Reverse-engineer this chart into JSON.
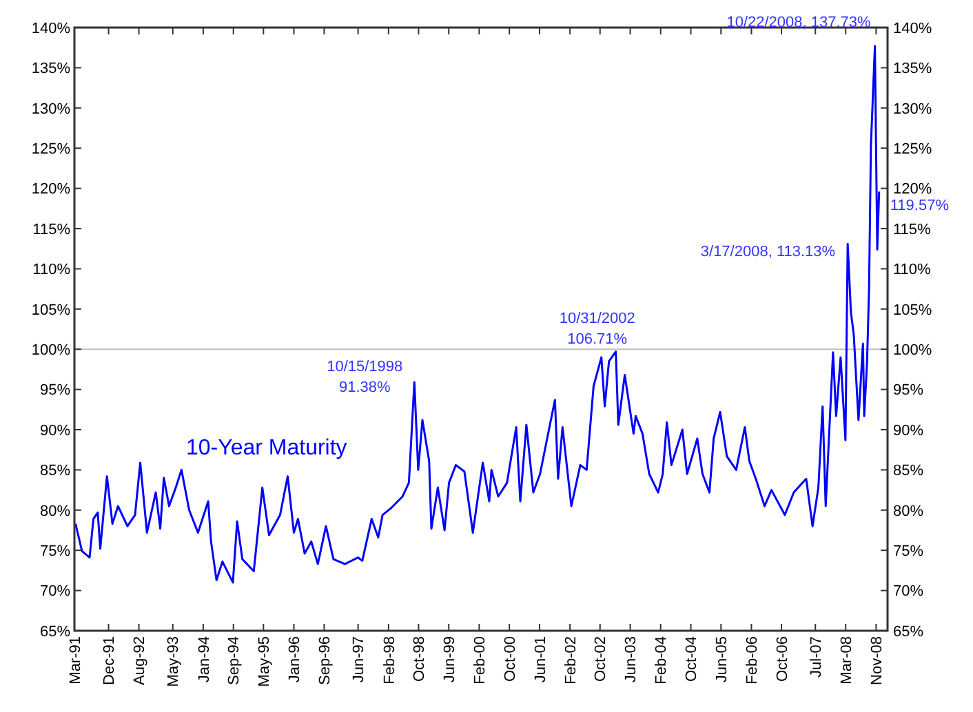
{
  "chart_data": {
    "type": "line",
    "series": [
      {
        "name": "10-Year Maturity",
        "color": "#0000ff",
        "x": [
          "1991-03-10",
          "1991-05-01",
          "1991-07-01",
          "1991-08-01",
          "1991-09-05",
          "1991-09-25",
          "1991-11-18",
          "1992-01-01",
          "1992-02-15",
          "1992-05-01",
          "1992-07-01",
          "1992-08-12",
          "1992-10-05",
          "1992-12-15",
          "1993-01-20",
          "1993-02-18",
          "1993-04-01",
          "1993-05-25",
          "1993-07-10",
          "1993-09-10",
          "1993-11-20",
          "1994-02-10",
          "1994-03-05",
          "1994-04-18",
          "1994-06-05",
          "1994-08-28",
          "1994-10-01",
          "1994-11-12",
          "1995-02-12",
          "1995-03-18",
          "1995-04-22",
          "1995-06-15",
          "1995-09-12",
          "1995-11-12",
          "1996-01-01",
          "1996-02-03",
          "1996-03-28",
          "1996-05-20",
          "1996-07-12",
          "1996-09-15",
          "1996-11-15",
          "1997-02-15",
          "1997-06-01",
          "1997-07-05",
          "1997-09-18",
          "1997-11-10",
          "1997-12-15",
          "1998-02-25",
          "1998-05-25",
          "1998-07-15",
          "1998-08-28",
          "1998-09-28",
          "1998-11-01",
          "1998-12-25",
          "1999-01-12",
          "1999-03-05",
          "1999-04-28",
          "1999-06-03",
          "1999-07-28",
          "1999-10-05",
          "1999-12-12",
          "2000-03-01",
          "2000-04-22",
          "2000-05-10",
          "2000-07-03",
          "2000-09-12",
          "2000-11-25",
          "2000-12-28",
          "2001-02-15",
          "2001-04-12",
          "2001-06-05",
          "2001-10-03",
          "2001-10-28",
          "2001-12-03",
          "2002-02-12",
          "2002-04-25",
          "2002-06-15",
          "2002-08-10",
          "2002-10-12",
          "2002-11-08",
          "2002-12-12",
          "2003-02-05",
          "2003-02-25",
          "2003-04-18",
          "2003-06-28",
          "2003-07-15",
          "2003-09-08",
          "2003-11-01",
          "2004-01-12",
          "2004-02-18",
          "2004-03-22",
          "2004-04-28",
          "2004-07-25",
          "2004-09-01",
          "2004-11-22",
          "2005-01-03",
          "2005-02-28",
          "2005-04-03",
          "2005-05-25",
          "2005-07-18",
          "2005-10-01",
          "2005-12-10",
          "2006-01-15",
          "2006-03-08",
          "2006-05-18",
          "2006-07-12",
          "2006-10-28",
          "2007-01-08",
          "2007-04-18",
          "2007-06-08",
          "2007-07-25",
          "2007-08-28",
          "2007-09-22",
          "2007-11-20",
          "2007-12-15",
          "2008-01-20",
          "2008-02-28",
          "2008-03-17",
          "2008-04-12",
          "2008-05-05",
          "2008-06-12",
          "2008-07-18",
          "2008-07-28",
          "2008-08-20",
          "2008-09-05",
          "2008-09-20",
          "2008-10-22",
          "2008-11-10",
          "2008-11-25"
        ],
        "values": [
          78.3,
          74.9,
          74.1,
          78.9,
          79.7,
          75.2,
          84.2,
          78.3,
          80.5,
          78.0,
          79.4,
          85.9,
          77.2,
          82.2,
          77.7,
          84.0,
          80.5,
          82.8,
          85.0,
          80.0,
          77.2,
          81.1,
          76.1,
          71.3,
          73.6,
          71.0,
          78.6,
          73.9,
          72.4,
          77.5,
          82.8,
          76.9,
          79.4,
          84.2,
          77.2,
          78.9,
          74.6,
          76.1,
          73.3,
          78.0,
          73.9,
          73.3,
          74.1,
          73.7,
          78.9,
          76.6,
          79.4,
          80.3,
          81.7,
          83.4,
          95.9,
          85.0,
          91.2,
          86.1,
          77.7,
          82.8,
          77.5,
          83.4,
          85.6,
          84.8,
          77.2,
          85.9,
          81.1,
          85.0,
          81.7,
          83.4,
          90.3,
          81.1,
          90.6,
          82.2,
          84.5,
          93.7,
          83.9,
          90.3,
          80.5,
          85.6,
          85.0,
          95.4,
          99.0,
          92.9,
          98.5,
          99.7,
          90.6,
          96.8,
          89.5,
          91.7,
          89.5,
          84.5,
          82.2,
          84.5,
          90.9,
          85.6,
          90.0,
          84.5,
          88.9,
          84.5,
          82.2,
          88.9,
          92.2,
          86.7,
          85.0,
          90.3,
          86.1,
          83.9,
          80.5,
          82.5,
          79.4,
          82.2,
          83.9,
          78.0,
          82.8,
          92.9,
          80.5,
          99.6,
          91.7,
          99.0,
          88.7,
          113.1,
          104.6,
          101.8,
          91.2,
          100.7,
          91.7,
          98.4,
          107.4,
          125.3,
          137.7,
          112.4,
          119.6
        ]
      }
    ],
    "xlim": [
      "1991-03-01",
      "2009-02-01"
    ],
    "xticks": [
      {
        "value": "1991-03-01",
        "label": "Mar-91"
      },
      {
        "value": "1991-12-01",
        "label": "Dec-91"
      },
      {
        "value": "1992-08-01",
        "label": "Aug-92"
      },
      {
        "value": "1993-05-01",
        "label": "May-93"
      },
      {
        "value": "1994-01-01",
        "label": "Jan-94"
      },
      {
        "value": "1994-09-01",
        "label": "Sep-94"
      },
      {
        "value": "1995-05-01",
        "label": "May-95"
      },
      {
        "value": "1996-01-01",
        "label": "Jan-96"
      },
      {
        "value": "1996-09-01",
        "label": "Sep-96"
      },
      {
        "value": "1997-06-01",
        "label": "Jun-97"
      },
      {
        "value": "1998-02-01",
        "label": "Feb-98"
      },
      {
        "value": "1998-10-01",
        "label": "Oct-98"
      },
      {
        "value": "1999-06-01",
        "label": "Jun-99"
      },
      {
        "value": "2000-02-01",
        "label": "Feb-00"
      },
      {
        "value": "2000-10-01",
        "label": "Oct-00"
      },
      {
        "value": "2001-06-01",
        "label": "Jun-01"
      },
      {
        "value": "2002-02-01",
        "label": "Feb-02"
      },
      {
        "value": "2002-10-01",
        "label": "Oct-02"
      },
      {
        "value": "2003-06-01",
        "label": "Jun-03"
      },
      {
        "value": "2004-02-01",
        "label": "Feb-04"
      },
      {
        "value": "2004-10-01",
        "label": "Oct-04"
      },
      {
        "value": "2005-06-01",
        "label": "Jun-05"
      },
      {
        "value": "2006-02-01",
        "label": "Feb-06"
      },
      {
        "value": "2006-10-01",
        "label": "Oct-06"
      },
      {
        "value": "2007-07-01",
        "label": "Jul-07"
      },
      {
        "value": "2008-03-01",
        "label": "Mar-08"
      },
      {
        "value": "2008-11-01",
        "label": "Nov-08"
      }
    ],
    "ylim": [
      65,
      140
    ],
    "yticks": [
      {
        "value": 65,
        "label": "65%"
      },
      {
        "value": 70,
        "label": "70%"
      },
      {
        "value": 75,
        "label": "75%"
      },
      {
        "value": 80,
        "label": "80%"
      },
      {
        "value": 85,
        "label": "85%"
      },
      {
        "value": 90,
        "label": "90%"
      },
      {
        "value": 95,
        "label": "95%"
      },
      {
        "value": 100,
        "label": "100%"
      },
      {
        "value": 105,
        "label": "105%"
      },
      {
        "value": 110,
        "label": "110%"
      },
      {
        "value": 115,
        "label": "115%"
      },
      {
        "value": 120,
        "label": "120%"
      },
      {
        "value": 125,
        "label": "125%"
      },
      {
        "value": 130,
        "label": "130%"
      },
      {
        "value": 135,
        "label": "135%"
      },
      {
        "value": 140,
        "label": "140%"
      }
    ],
    "y2lim": [
      65,
      140
    ],
    "y2ticks": [
      {
        "value": 65,
        "label": "65%"
      },
      {
        "value": 70,
        "label": "70%"
      },
      {
        "value": 75,
        "label": "75%"
      },
      {
        "value": 80,
        "label": "80%"
      },
      {
        "value": 85,
        "label": "85%"
      },
      {
        "value": 90,
        "label": "90%"
      },
      {
        "value": 95,
        "label": "95%"
      },
      {
        "value": 100,
        "label": "100%"
      },
      {
        "value": 105,
        "label": "105%"
      },
      {
        "value": 110,
        "label": "110%"
      },
      {
        "value": 115,
        "label": "115%"
      },
      {
        "value": 120,
        "label": "120%"
      },
      {
        "value": 125,
        "label": "125%"
      },
      {
        "value": 130,
        "label": "130%"
      },
      {
        "value": 135,
        "label": "135%"
      },
      {
        "value": 140,
        "label": "140%"
      }
    ],
    "ref_lines": [
      {
        "axis": "y",
        "value": 100,
        "color": "#c0c0c0"
      }
    ],
    "annotations": [
      "10/15/1998\n91.38%",
      "10/31/2002\n106.71%",
      {
        "text": "3/17/2008, 113.13%",
        "x": "2008-03-17",
        "y": 113.13
      },
      {
        "text": "10/22/2008, 137.73%",
        "x": "2008-10-22",
        "y": 137.73
      },
      {
        "text": "119.57%",
        "x": "2008-11-25",
        "y": 119.57
      }
    ],
    "grid": false,
    "line_style": "solid",
    "marker": "none"
  }
}
